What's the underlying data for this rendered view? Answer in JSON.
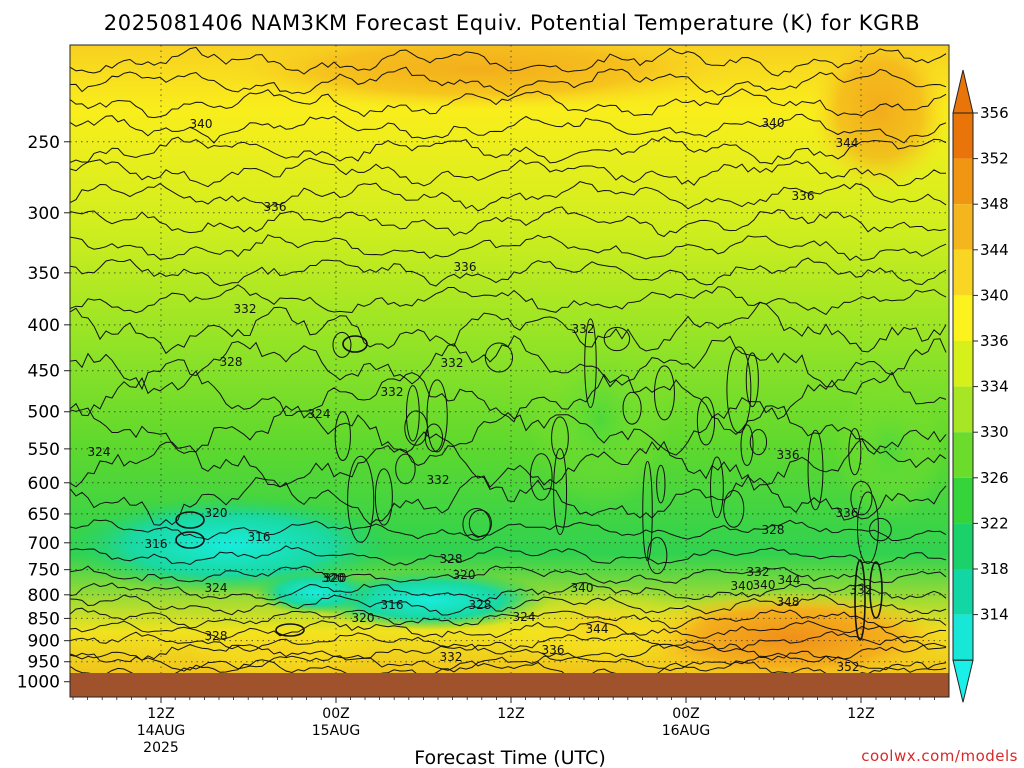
{
  "chart_data": {
    "type": "heatmap",
    "title": "2025081406 NAM3KM Forecast Equiv. Potential Temperature (K) for KGRB",
    "xlabel": "Forecast Time (UTC)",
    "ylabel": "",
    "y_axis": {
      "ticks": [
        "250",
        "300",
        "350",
        "400",
        "450",
        "500",
        "550",
        "600",
        "650",
        "700",
        "750",
        "800",
        "850",
        "900",
        "950",
        "1000"
      ],
      "log_scale": true,
      "reversed": true
    },
    "x_axis": {
      "ticks": [
        {
          "l1": "12Z",
          "l2": "14AUG",
          "l3": "2025"
        },
        {
          "l1": "00Z",
          "l2": "15AUG",
          "l3": ""
        },
        {
          "l1": "12Z",
          "l2": "",
          "l3": ""
        },
        {
          "l1": "00Z",
          "l2": "16AUG",
          "l3": ""
        },
        {
          "l1": "12Z",
          "l2": "",
          "l3": ""
        }
      ]
    },
    "colorbar": {
      "ticks": [
        "356",
        "352",
        "348",
        "344",
        "340",
        "336",
        "334",
        "330",
        "326",
        "322",
        "318",
        "314"
      ],
      "colors": [
        "#e8740a",
        "#f09612",
        "#f5b51c",
        "#f9d524",
        "#fbf21e",
        "#d6f01c",
        "#a6e625",
        "#6bdc2c",
        "#35d43b",
        "#1ad16a",
        "#12d6a3",
        "#18e6d6"
      ]
    },
    "contour_labels": [
      "340",
      "340",
      "344",
      "336",
      "336",
      "336",
      "332",
      "332",
      "332",
      "332",
      "328",
      "324",
      "324",
      "320",
      "316",
      "316",
      "320",
      "328",
      "320",
      "332",
      "336",
      "340",
      "324",
      "320",
      "316",
      "328",
      "320",
      "324",
      "328",
      "332",
      "336",
      "344",
      "340",
      "340",
      "344",
      "332",
      "348",
      "328",
      "336",
      "332",
      "352"
    ],
    "grid": true,
    "underground_color": "#a0522d"
  },
  "credit": "coolwx.com/models"
}
